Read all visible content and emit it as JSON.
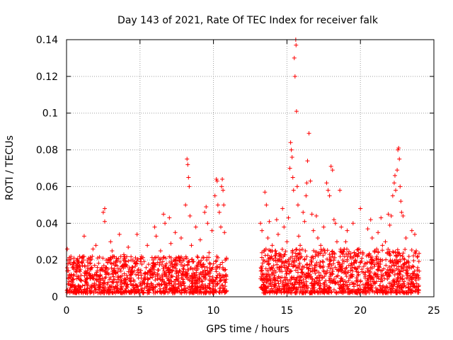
{
  "chart_data": {
    "type": "scatter",
    "title": "Day 143 of 2021, Rate Of TEC Index for receiver falk",
    "xlabel": "GPS time / hours",
    "ylabel": "ROTI / TECUs",
    "xlim": [
      0,
      25
    ],
    "ylim": [
      0,
      0.14
    ],
    "x_ticks": [
      0,
      5,
      10,
      15,
      20,
      25
    ],
    "x_tick_labels": [
      "0",
      "5",
      "10",
      "15",
      "20",
      "25"
    ],
    "y_ticks": [
      0,
      0.02,
      0.04,
      0.06,
      0.08,
      0.1,
      0.12,
      0.14
    ],
    "y_tick_labels": [
      "0",
      "0.02",
      "0.04",
      "0.06",
      "0.08",
      "0.1",
      "0.12",
      "0.14"
    ],
    "grid": true,
    "marker": "plus",
    "color": "#ff0000",
    "series": [
      {
        "points": [
          [
            0.05,
            0.026
          ],
          [
            0.1,
            0.018
          ],
          [
            0.2,
            0.012
          ],
          [
            0.3,
            0.022
          ],
          [
            0.4,
            0.008
          ],
          [
            0.5,
            0.015
          ],
          [
            0.6,
            0.005
          ],
          [
            0.7,
            0.02
          ],
          [
            0.8,
            0.011
          ],
          [
            0.9,
            0.017
          ],
          [
            1.0,
            0.009
          ],
          [
            1.2,
            0.033
          ],
          [
            1.3,
            0.014
          ],
          [
            1.5,
            0.021
          ],
          [
            1.6,
            0.01
          ],
          [
            1.8,
            0.026
          ],
          [
            1.9,
            0.012
          ],
          [
            2.0,
            0.028
          ],
          [
            2.1,
            0.016
          ],
          [
            2.3,
            0.009
          ],
          [
            2.5,
            0.046
          ],
          [
            2.6,
            0.048
          ],
          [
            2.6,
            0.041
          ],
          [
            2.7,
            0.02
          ],
          [
            2.8,
            0.013
          ],
          [
            3.0,
            0.03
          ],
          [
            3.1,
            0.025
          ],
          [
            3.2,
            0.011
          ],
          [
            3.4,
            0.021
          ],
          [
            3.6,
            0.034
          ],
          [
            3.7,
            0.014
          ],
          [
            3.9,
            0.023
          ],
          [
            4.0,
            0.009
          ],
          [
            4.2,
            0.027
          ],
          [
            4.4,
            0.012
          ],
          [
            4.6,
            0.019
          ],
          [
            4.8,
            0.034
          ],
          [
            4.9,
            0.015
          ],
          [
            5.1,
            0.022
          ],
          [
            5.3,
            0.01
          ],
          [
            5.5,
            0.028
          ],
          [
            5.7,
            0.014
          ],
          [
            5.9,
            0.02
          ],
          [
            6.0,
            0.038
          ],
          [
            6.1,
            0.033
          ],
          [
            6.2,
            0.012
          ],
          [
            6.4,
            0.025
          ],
          [
            6.6,
            0.045
          ],
          [
            6.7,
            0.04
          ],
          [
            6.8,
            0.018
          ],
          [
            7.0,
            0.043
          ],
          [
            7.1,
            0.029
          ],
          [
            7.2,
            0.014
          ],
          [
            7.4,
            0.035
          ],
          [
            7.6,
            0.021
          ],
          [
            7.8,
            0.032
          ],
          [
            7.9,
            0.012
          ],
          [
            8.1,
            0.05
          ],
          [
            8.2,
            0.075
          ],
          [
            8.25,
            0.072
          ],
          [
            8.3,
            0.065
          ],
          [
            8.35,
            0.06
          ],
          [
            8.4,
            0.044
          ],
          [
            8.5,
            0.028
          ],
          [
            8.6,
            0.015
          ],
          [
            8.8,
            0.038
          ],
          [
            8.9,
            0.022
          ],
          [
            9.1,
            0.031
          ],
          [
            9.2,
            0.012
          ],
          [
            9.4,
            0.046
          ],
          [
            9.5,
            0.049
          ],
          [
            9.6,
            0.04
          ],
          [
            9.7,
            0.024
          ],
          [
            9.9,
            0.036
          ],
          [
            10.0,
            0.018
          ],
          [
            10.1,
            0.055
          ],
          [
            10.2,
            0.064
          ],
          [
            10.25,
            0.063
          ],
          [
            10.3,
            0.05
          ],
          [
            10.4,
            0.046
          ],
          [
            10.5,
            0.038
          ],
          [
            10.55,
            0.06
          ],
          [
            10.6,
            0.064
          ],
          [
            10.65,
            0.058
          ],
          [
            10.7,
            0.05
          ],
          [
            10.75,
            0.035
          ],
          [
            10.8,
            0.02
          ],
          [
            10.85,
            0.012
          ],
          [
            13.2,
            0.04
          ],
          [
            13.3,
            0.036
          ],
          [
            13.4,
            0.02
          ],
          [
            13.5,
            0.057
          ],
          [
            13.6,
            0.05
          ],
          [
            13.7,
            0.032
          ],
          [
            13.8,
            0.041
          ],
          [
            13.9,
            0.015
          ],
          [
            14.0,
            0.028
          ],
          [
            14.1,
            0.02
          ],
          [
            14.3,
            0.042
          ],
          [
            14.4,
            0.034
          ],
          [
            14.5,
            0.022
          ],
          [
            14.7,
            0.048
          ],
          [
            14.8,
            0.038
          ],
          [
            15.0,
            0.03
          ],
          [
            15.1,
            0.043
          ],
          [
            15.2,
            0.07
          ],
          [
            15.25,
            0.084
          ],
          [
            15.3,
            0.08
          ],
          [
            15.35,
            0.076
          ],
          [
            15.4,
            0.065
          ],
          [
            15.45,
            0.058
          ],
          [
            15.5,
            0.13
          ],
          [
            15.55,
            0.12
          ],
          [
            15.6,
            0.14
          ],
          [
            15.62,
            0.137
          ],
          [
            15.65,
            0.101
          ],
          [
            15.7,
            0.06
          ],
          [
            15.75,
            0.05
          ],
          [
            15.8,
            0.033
          ],
          [
            15.9,
            0.028
          ],
          [
            16.1,
            0.046
          ],
          [
            16.2,
            0.041
          ],
          [
            16.3,
            0.055
          ],
          [
            16.35,
            0.062
          ],
          [
            16.4,
            0.074
          ],
          [
            16.5,
            0.089
          ],
          [
            16.6,
            0.063
          ],
          [
            16.7,
            0.045
          ],
          [
            16.8,
            0.036
          ],
          [
            17.0,
            0.044
          ],
          [
            17.1,
            0.032
          ],
          [
            17.3,
            0.028
          ],
          [
            17.5,
            0.038
          ],
          [
            17.7,
            0.062
          ],
          [
            17.8,
            0.058
          ],
          [
            17.9,
            0.055
          ],
          [
            18.0,
            0.071
          ],
          [
            18.1,
            0.069
          ],
          [
            18.2,
            0.042
          ],
          [
            18.3,
            0.04
          ],
          [
            18.4,
            0.03
          ],
          [
            18.6,
            0.058
          ],
          [
            18.7,
            0.038
          ],
          [
            18.8,
            0.02
          ],
          [
            19.0,
            0.03
          ],
          [
            19.1,
            0.036
          ],
          [
            19.3,
            0.022
          ],
          [
            19.5,
            0.04
          ],
          [
            19.7,
            0.015
          ],
          [
            19.9,
            0.026
          ],
          [
            20.0,
            0.048
          ],
          [
            20.1,
            0.021
          ],
          [
            20.3,
            0.012
          ],
          [
            20.5,
            0.037
          ],
          [
            20.7,
            0.042
          ],
          [
            20.8,
            0.032
          ],
          [
            21.0,
            0.025
          ],
          [
            21.2,
            0.035
          ],
          [
            21.4,
            0.043
          ],
          [
            21.5,
            0.028
          ],
          [
            21.7,
            0.03
          ],
          [
            21.9,
            0.045
          ],
          [
            22.0,
            0.039
          ],
          [
            22.1,
            0.044
          ],
          [
            22.2,
            0.055
          ],
          [
            22.3,
            0.062
          ],
          [
            22.35,
            0.066
          ],
          [
            22.4,
            0.058
          ],
          [
            22.5,
            0.069
          ],
          [
            22.55,
            0.08
          ],
          [
            22.6,
            0.081
          ],
          [
            22.65,
            0.075
          ],
          [
            22.7,
            0.06
          ],
          [
            22.75,
            0.052
          ],
          [
            22.8,
            0.046
          ],
          [
            22.9,
            0.044
          ],
          [
            23.1,
            0.032
          ],
          [
            23.3,
            0.022
          ],
          [
            23.5,
            0.036
          ],
          [
            23.7,
            0.034
          ],
          [
            23.8,
            0.025
          ],
          [
            23.9,
            0.022
          ],
          [
            24.0,
            0.014
          ]
        ]
      }
    ],
    "dense_band": [
      {
        "x_range": [
          0,
          10.9
        ],
        "y_range": [
          0.002,
          0.022
        ],
        "count": 1100
      },
      {
        "x_range": [
          13.2,
          24.0
        ],
        "y_range": [
          0.002,
          0.026
        ],
        "count": 1200
      }
    ]
  }
}
